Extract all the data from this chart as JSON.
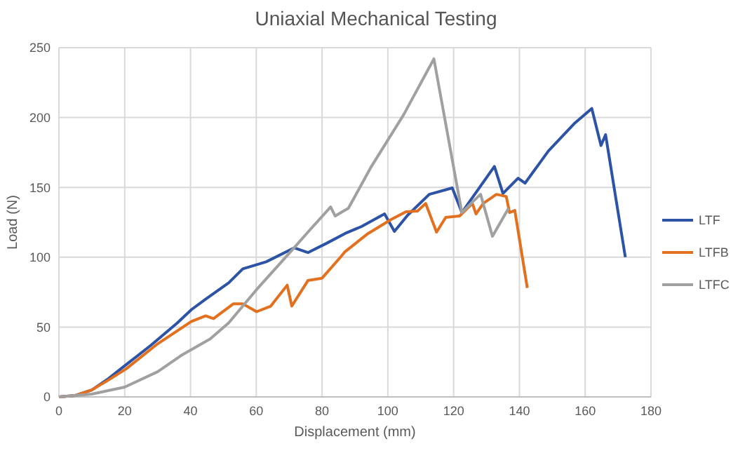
{
  "chart_data": {
    "type": "line",
    "title": "Uniaxial Mechanical Testing",
    "xlabel": "Displacement (mm)",
    "ylabel": "Load (N)",
    "xlim": [
      0,
      180
    ],
    "xticks": [
      0,
      20,
      40,
      60,
      80,
      100,
      120,
      140,
      160,
      180
    ],
    "ylim": [
      0,
      250
    ],
    "yticks": [
      0,
      50,
      100,
      150,
      200,
      250
    ],
    "grid": true,
    "legend": "right",
    "marker": "none",
    "line_style": "solid",
    "series": [
      {
        "name": "LTF",
        "color": "#2c53a6",
        "x": [
          0,
          5,
          10,
          15,
          20.4,
          28,
          36,
          40.3,
          44.6,
          51.6,
          55.9,
          63,
          71.5,
          75.7,
          81.4,
          87,
          92,
          99,
          102,
          106,
          112.6,
          119.6,
          122.5,
          132.4,
          135,
          139.6,
          141.7,
          148.8,
          156.6,
          162,
          164.8,
          166.2,
          172.2
        ],
        "values": [
          0,
          1,
          5,
          13,
          23,
          37,
          53,
          62.5,
          70,
          81.6,
          91.7,
          96.7,
          106.7,
          103.3,
          110,
          117,
          122,
          131,
          118.5,
          130,
          145,
          149.6,
          132,
          165,
          145.6,
          156.6,
          153,
          176,
          195.5,
          206.5,
          180,
          187.7,
          100
        ]
      },
      {
        "name": "LTFB",
        "color": "#e2701e",
        "x": [
          0,
          5,
          10,
          15,
          20.4,
          30,
          40.3,
          44.6,
          47,
          53,
          55.9,
          60.1,
          64.4,
          69.4,
          70.8,
          75.7,
          80,
          85.6,
          87,
          94,
          101,
          105.5,
          109,
          111.5,
          114.8,
          117.6,
          121.8,
          125.7,
          126.8,
          129,
          133,
          136,
          137,
          138.6,
          142.4
        ],
        "values": [
          0,
          1,
          5,
          12,
          20,
          38,
          54,
          58,
          56,
          66.6,
          66.6,
          61,
          65,
          80,
          65,
          83.3,
          85,
          100,
          104,
          117,
          127,
          132.5,
          133,
          138.5,
          118,
          128.5,
          129.5,
          138.5,
          131,
          138.5,
          145,
          143.5,
          132,
          133.5,
          78
        ]
      },
      {
        "name": "LTFC",
        "color": "#a0a0a0",
        "x": [
          0,
          10,
          20,
          30,
          37.4,
          46,
          51.6,
          60,
          71.5,
          75.7,
          82.6,
          84,
          86.5,
          88,
          95,
          104.8,
          114,
          122.5,
          125.5,
          128.2,
          131.8,
          136.7
        ],
        "values": [
          0,
          2,
          7,
          18,
          30,
          41.5,
          53,
          76.6,
          106.7,
          118,
          136,
          129.5,
          133,
          135,
          165,
          202,
          242,
          132,
          139,
          145,
          115,
          135
        ]
      }
    ]
  }
}
